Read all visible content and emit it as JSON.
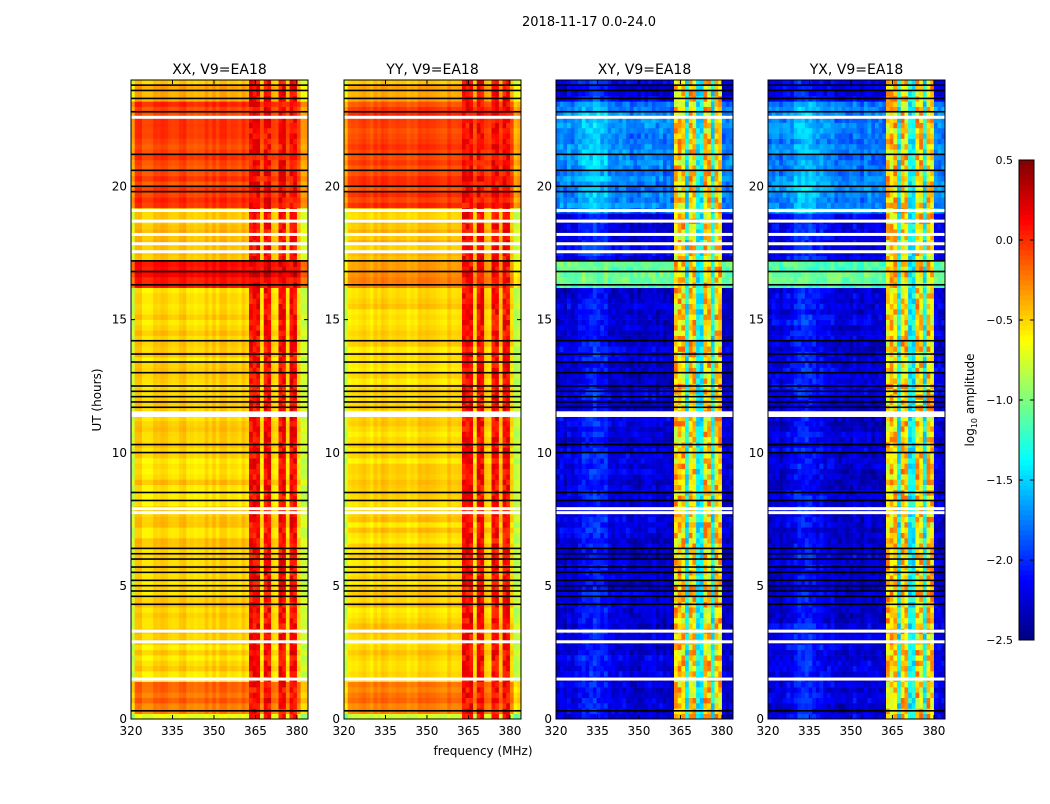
{
  "chart_data": {
    "type": "heatmap",
    "suptitle": "2018-11-17 0.0-24.0",
    "xlabel": "frequency (MHz)",
    "ylabel": "UT (hours)",
    "xlim": [
      320,
      384
    ],
    "ylim": [
      0,
      24
    ],
    "xticks": [
      "320",
      "335",
      "350",
      "365",
      "380"
    ],
    "xtick_values": [
      320,
      335,
      350,
      365,
      380
    ],
    "yticks": [
      "0",
      "5",
      "10",
      "15",
      "20"
    ],
    "ytick_values": [
      0,
      5,
      10,
      15,
      20
    ],
    "colorbar": {
      "label": "log10 amplitude",
      "label_main": "log",
      "label_sub": "10",
      "label_tail": " amplitude",
      "colormap": "jet",
      "range": [
        -2.5,
        0.5
      ],
      "ticks": [
        "0.5",
        "0.0",
        "−0.5",
        "−1.0",
        "−1.5",
        "−2.0",
        "−2.5"
      ],
      "tick_values": [
        0.5,
        0.0,
        -0.5,
        -1.0,
        -1.5,
        -2.0,
        -2.5
      ]
    },
    "rfi_band_mhz": [
      363,
      379.5
    ],
    "rfi_gaps_mhz": [
      367.5,
      372,
      376.5
    ],
    "flagged_white_ut": [
      1.5,
      2.9,
      3.3,
      7.75,
      7.9,
      11.4,
      11.5,
      17.55,
      17.85,
      18.2,
      18.7,
      19.1,
      22.6
    ],
    "black_line_ut": [
      0.3,
      4.3,
      4.6,
      4.8,
      5.0,
      5.2,
      5.5,
      5.7,
      6.0,
      6.2,
      6.4,
      8.2,
      8.5,
      10.0,
      10.3,
      11.7,
      11.9,
      12.1,
      12.3,
      12.5,
      13.0,
      13.4,
      13.7,
      14.2,
      16.3,
      16.8,
      17.2,
      19.8,
      20.0,
      20.6,
      21.2,
      22.8,
      23.3,
      23.6,
      23.8
    ],
    "panels": [
      {
        "title": "XX, V9=EA18",
        "kind": "parallel",
        "segments": [
          {
            "ut": [
              0,
              0.3
            ],
            "log_amp": -0.7
          },
          {
            "ut": [
              0.3,
              1.5
            ],
            "log_amp": -0.2
          },
          {
            "ut": [
              1.5,
              16.3
            ],
            "log_amp": -0.5
          },
          {
            "ut": [
              16.3,
              17.3
            ],
            "log_amp": 0.1
          },
          {
            "ut": [
              17.3,
              19.3
            ],
            "log_amp": -0.45
          },
          {
            "ut": [
              19.3,
              23.3
            ],
            "log_amp": -0.05
          },
          {
            "ut": [
              23.3,
              24
            ],
            "log_amp": -0.4
          }
        ],
        "rfi_log_amp": 0.15
      },
      {
        "title": "YY, V9=EA18",
        "kind": "parallel",
        "segments": [
          {
            "ut": [
              0,
              0.3
            ],
            "log_amp": -0.7
          },
          {
            "ut": [
              0.3,
              1.5
            ],
            "log_amp": -0.2
          },
          {
            "ut": [
              1.5,
              16.3
            ],
            "log_amp": -0.5
          },
          {
            "ut": [
              16.3,
              17.3
            ],
            "log_amp": -0.3
          },
          {
            "ut": [
              17.3,
              19.3
            ],
            "log_amp": -0.45
          },
          {
            "ut": [
              19.3,
              23.3
            ],
            "log_amp": -0.05
          },
          {
            "ut": [
              23.3,
              24
            ],
            "log_amp": -0.4
          }
        ],
        "rfi_log_amp": 0.15
      },
      {
        "title": "XY, V9=EA18",
        "kind": "cross",
        "segments": [
          {
            "ut": [
              0,
              16.3
            ],
            "log_amp": -2.25
          },
          {
            "ut": [
              16.3,
              17.3
            ],
            "log_amp": -1.1
          },
          {
            "ut": [
              17.3,
              19.0
            ],
            "log_amp": -2.2
          },
          {
            "ut": [
              19.0,
              23.3
            ],
            "log_amp": -1.75
          },
          {
            "ut": [
              23.3,
              24
            ],
            "log_amp": -2.2
          }
        ],
        "rfi_log_amp": -0.5
      },
      {
        "title": "YX, V9=EA18",
        "kind": "cross",
        "segments": [
          {
            "ut": [
              0,
              16.3
            ],
            "log_amp": -2.25
          },
          {
            "ut": [
              16.3,
              17.3
            ],
            "log_amp": -1.1
          },
          {
            "ut": [
              17.3,
              19.0
            ],
            "log_amp": -2.2
          },
          {
            "ut": [
              19.0,
              23.3
            ],
            "log_amp": -1.75
          },
          {
            "ut": [
              23.3,
              24
            ],
            "log_amp": -2.2
          }
        ],
        "rfi_log_amp": -0.5
      }
    ]
  }
}
